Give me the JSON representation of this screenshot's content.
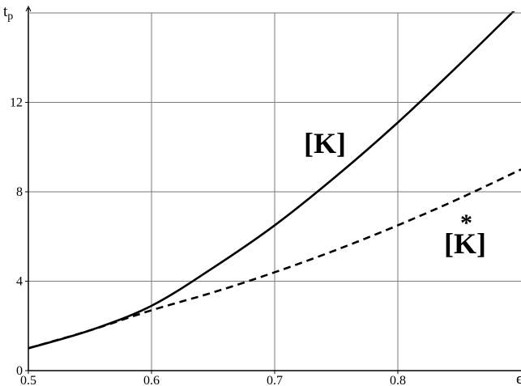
{
  "chart_data": {
    "type": "line",
    "title": "",
    "xlabel": "ϵ",
    "ylabel": "t",
    "ylabel_sub": "p",
    "xlim": [
      0.5,
      0.9
    ],
    "ylim": [
      0,
      16
    ],
    "xticks": [
      0.5,
      0.6,
      0.7,
      0.8
    ],
    "xtick_labels": [
      "0.5",
      "0.6",
      "0.7",
      "0.8"
    ],
    "yticks": [
      0,
      4,
      8,
      12
    ],
    "ytick_labels": [
      "0",
      "4",
      "8",
      "12"
    ],
    "grid": true,
    "legend": "none",
    "series": [
      {
        "name": "[K]",
        "style": "solid",
        "x": [
          0.5,
          0.55,
          0.6,
          0.65,
          0.7,
          0.75,
          0.8,
          0.85,
          0.9
        ],
        "y": [
          1.0,
          1.8,
          2.9,
          4.6,
          6.5,
          8.7,
          11.1,
          13.7,
          16.4
        ]
      },
      {
        "name": "[K]",
        "marker": "*",
        "style": "dashed",
        "x": [
          0.5,
          0.55,
          0.6,
          0.65,
          0.7,
          0.75,
          0.8,
          0.85,
          0.9
        ],
        "y": [
          1.0,
          1.8,
          2.7,
          3.5,
          4.4,
          5.4,
          6.5,
          7.7,
          9.0
        ]
      }
    ]
  }
}
